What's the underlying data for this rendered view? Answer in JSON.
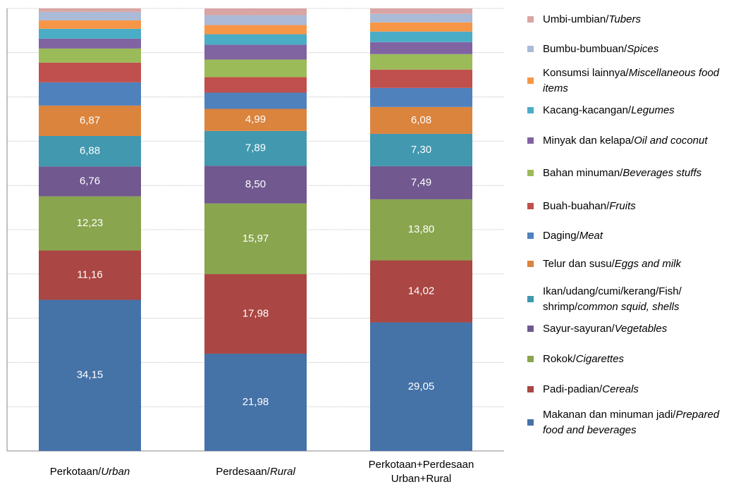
{
  "chart_data": {
    "type": "bar",
    "stacked": true,
    "categories": [
      "Perkotaan/Urban",
      "Perdesaan/Rural",
      "Perkotaan+Perdesaan Urban+Rural"
    ],
    "ylim": [
      0,
      100
    ],
    "yticks": [
      0,
      10,
      20,
      30,
      40,
      50,
      60,
      70,
      80,
      90,
      100
    ],
    "grid": true,
    "legend": "right",
    "series": [
      {
        "name": "Makanan dan minuman jadi/Prepared food and beverages",
        "color": "#4572a7",
        "values": [
          34.15,
          21.98,
          29.05
        ],
        "value_labels": [
          "34,15",
          "21,98",
          "29,05"
        ]
      },
      {
        "name": "Padi-padian/Cereals",
        "color": "#aa4643",
        "values": [
          11.16,
          17.98,
          14.02
        ],
        "value_labels": [
          "11,16",
          "17,98",
          "14,02"
        ]
      },
      {
        "name": "Rokok/Cigarettes",
        "color": "#89a54e",
        "values": [
          12.23,
          15.97,
          13.8
        ],
        "value_labels": [
          "12,23",
          "15,97",
          "13,80"
        ]
      },
      {
        "name": "Sayur-sayuran/Vegetables",
        "color": "#71588f",
        "values": [
          6.76,
          8.5,
          7.49
        ],
        "value_labels": [
          "6,76",
          "8,50",
          "7,49"
        ]
      },
      {
        "name": "Ikan/udang/cumi/kerang/Fish/ shrimp/common squid, shells",
        "color": "#4198af",
        "values": [
          6.88,
          7.89,
          7.3
        ],
        "value_labels": [
          "6,88",
          "7,89",
          "7,30"
        ]
      },
      {
        "name": "Telur dan susu/Eggs and milk",
        "color": "#db843d",
        "values": [
          6.87,
          4.99,
          6.08
        ],
        "value_labels": [
          "6,87",
          "4,99",
          "6,08"
        ]
      },
      {
        "name": "Daging/Meat",
        "color": "#4f81bd",
        "values": [
          5.25,
          3.66,
          4.3
        ]
      },
      {
        "name": "Buah-buahan/Fruits",
        "color": "#c0504d",
        "values": [
          4.46,
          3.5,
          4.14
        ]
      },
      {
        "name": "Bahan minuman/Beverages stuffs",
        "color": "#9bbb59",
        "values": [
          3.18,
          3.98,
          3.5
        ]
      },
      {
        "name": "Minyak dan kelapa/Oil and coconut",
        "color": "#8064a2",
        "values": [
          2.23,
          3.34,
          2.71
        ]
      },
      {
        "name": "Kacang-kacangan/Legumes",
        "color": "#4bacc6",
        "values": [
          2.23,
          2.39,
          2.39
        ]
      },
      {
        "name": "Konsumsi lainnya/Miscellaneous food items",
        "color": "#f79646",
        "values": [
          1.91,
          2.07,
          2.07
        ]
      },
      {
        "name": "Bumbu-bumbuan/Spices",
        "color": "#aabad7",
        "values": [
          1.91,
          2.23,
          1.91
        ]
      },
      {
        "name": "Umbi-umbian/Tubers",
        "color": "#d9a5a4",
        "values": [
          0.8,
          1.52,
          1.24
        ]
      }
    ]
  }
}
